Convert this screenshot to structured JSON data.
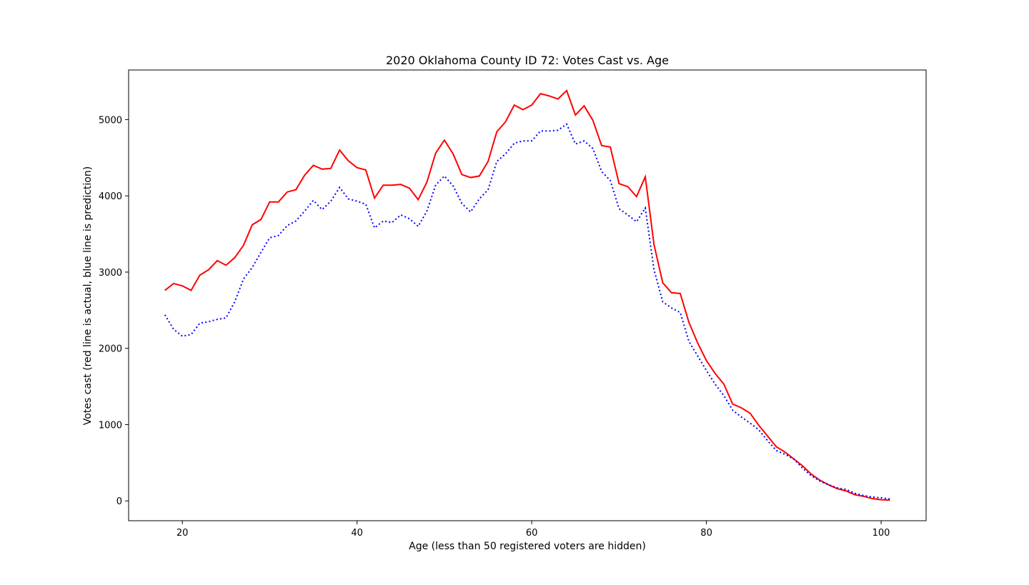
{
  "chart_data": {
    "type": "line",
    "title": "2020 Oklahoma County ID 72: Votes Cast vs. Age",
    "xlabel": "Age (less than 50 registered voters are hidden)",
    "ylabel": "Votes cast (red line is actual, blue line is prediction)",
    "xlim": [
      13.85,
      105.15
    ],
    "ylim": [
      -260,
      5650
    ],
    "xticks": [
      20,
      40,
      60,
      80,
      100
    ],
    "yticks": [
      0,
      1000,
      2000,
      3000,
      4000,
      5000
    ],
    "xtick_labels": [
      "20",
      "40",
      "60",
      "80",
      "100"
    ],
    "ytick_labels": [
      "0",
      "1000",
      "2000",
      "3000",
      "4000",
      "5000"
    ],
    "grid": false,
    "x": [
      18,
      19,
      20,
      21,
      22,
      23,
      24,
      25,
      26,
      27,
      28,
      29,
      30,
      31,
      32,
      33,
      34,
      35,
      36,
      37,
      38,
      39,
      40,
      41,
      42,
      43,
      44,
      45,
      46,
      47,
      48,
      49,
      50,
      51,
      52,
      53,
      54,
      55,
      56,
      57,
      58,
      59,
      60,
      61,
      62,
      63,
      64,
      65,
      66,
      67,
      68,
      69,
      70,
      71,
      72,
      73,
      74,
      75,
      76,
      77,
      78,
      79,
      80,
      81,
      82,
      83,
      84,
      85,
      86,
      87,
      88,
      89,
      90,
      91,
      92,
      93,
      94,
      95,
      96,
      97,
      98,
      99,
      100,
      101
    ],
    "series": [
      {
        "color": "#ff0000",
        "style": "solid",
        "values": [
          2760,
          2850,
          2820,
          2760,
          2960,
          3030,
          3150,
          3090,
          3190,
          3350,
          3620,
          3690,
          3920,
          3920,
          4050,
          4080,
          4270,
          4400,
          4350,
          4360,
          4600,
          4460,
          4370,
          4340,
          3970,
          4140,
          4140,
          4150,
          4100,
          3950,
          4180,
          4560,
          4730,
          4550,
          4280,
          4240,
          4260,
          4450,
          4840,
          4970,
          5190,
          5130,
          5190,
          5340,
          5310,
          5270,
          5380,
          5060,
          5180,
          4990,
          4660,
          4640,
          4160,
          4120,
          3990,
          4250,
          3360,
          2860,
          2730,
          2720,
          2340,
          2070,
          1840,
          1670,
          1530,
          1270,
          1220,
          1150,
          990,
          850,
          710,
          640,
          550,
          460,
          350,
          270,
          210,
          160,
          130,
          80,
          60,
          30,
          15,
          10
        ]
      },
      {
        "color": "#0000ff",
        "style": "dotted",
        "values": [
          2440,
          2250,
          2160,
          2180,
          2330,
          2350,
          2380,
          2400,
          2610,
          2910,
          3060,
          3260,
          3450,
          3480,
          3610,
          3670,
          3800,
          3940,
          3820,
          3930,
          4110,
          3960,
          3930,
          3890,
          3580,
          3670,
          3650,
          3750,
          3700,
          3600,
          3800,
          4140,
          4260,
          4130,
          3900,
          3790,
          3960,
          4080,
          4450,
          4550,
          4690,
          4720,
          4720,
          4850,
          4850,
          4860,
          4940,
          4680,
          4720,
          4620,
          4320,
          4200,
          3830,
          3750,
          3660,
          3840,
          3030,
          2610,
          2530,
          2470,
          2090,
          1900,
          1710,
          1530,
          1380,
          1190,
          1100,
          1020,
          930,
          790,
          660,
          610,
          550,
          430,
          330,
          260,
          210,
          170,
          150,
          100,
          70,
          50,
          40,
          25
        ]
      }
    ]
  }
}
